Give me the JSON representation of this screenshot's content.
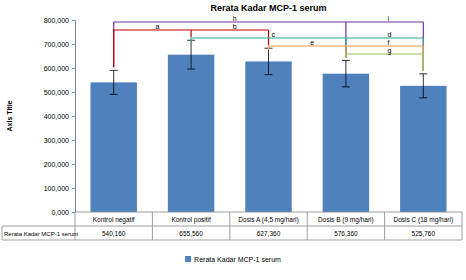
{
  "chart_data": {
    "type": "bar",
    "title": "Rerata Kadar MCP-1 serum",
    "y_label": "Axis Title",
    "categories": [
      "Kontrol negatif",
      "Kontrol positif",
      "Dosis A (4,5 mg/hari)",
      "Dosis B (9 mg/hari)",
      "Dosis C (18 mg/hari)"
    ],
    "series": [
      {
        "name": "Rerata Kadar MCP-1 serum",
        "color": "#4f81bd",
        "values": [
          540.16,
          655.56,
          627.36,
          576.36,
          525.76
        ],
        "value_labels": [
          "540,160",
          "655,560",
          "627,360",
          "576,360",
          "525,760"
        ],
        "errors": [
          50,
          60,
          55,
          55,
          50
        ]
      }
    ],
    "ylim": [
      0,
      800
    ],
    "yticks": [
      {
        "value": 0,
        "label": "0,000"
      },
      {
        "value": 100,
        "label": "100,000"
      },
      {
        "value": 200,
        "label": "200,000"
      },
      {
        "value": 300,
        "label": "300,000"
      },
      {
        "value": 400,
        "label": "400,000"
      },
      {
        "value": 500,
        "label": "500,000"
      },
      {
        "value": 600,
        "label": "600,000"
      },
      {
        "value": 700,
        "label": "700,000"
      },
      {
        "value": 800,
        "label": "800,000"
      }
    ],
    "grid": false,
    "legend": "bottom",
    "annotations": [
      {
        "label": "a",
        "from": "Kontrol negatif",
        "to": "Kontrol positif",
        "color": "#c00000"
      },
      {
        "label": "b",
        "from": "Kontrol negatif",
        "to": "Dosis A (4,5 mg/hari)",
        "color": "#c00000"
      },
      {
        "label": "c",
        "from": "Kontrol positif",
        "to": "Dosis B (9 mg/hari)",
        "color": "#31a9a0"
      },
      {
        "label": "d",
        "from": "Kontrol positif",
        "to": "Dosis C (18 mg/hari)",
        "color": "#31a9a0"
      },
      {
        "label": "e",
        "from": "Dosis A (4,5 mg/hari)",
        "to": "Dosis B (9 mg/hari)",
        "color": "#f79646"
      },
      {
        "label": "f",
        "from": "Dosis A (4,5 mg/hari)",
        "to": "Dosis C (18 mg/hari)",
        "color": "#f79646"
      },
      {
        "label": "g",
        "from": "Dosis B (9 mg/hari)",
        "to": "Dosis C (18 mg/hari)",
        "color": "#9bbb59"
      },
      {
        "label": "h",
        "from": "Kontrol negatif",
        "to": "Dosis B (9 mg/hari)",
        "color": "#7030a0"
      },
      {
        "label": "i",
        "from": "Kontrol negatif",
        "to": "Dosis C (18 mg/hari)",
        "color": "#7030a0"
      }
    ]
  }
}
